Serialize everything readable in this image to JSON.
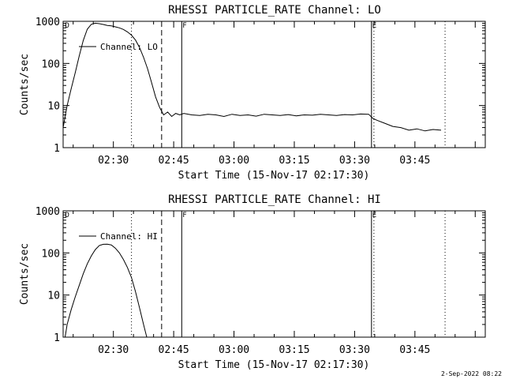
{
  "footer": {
    "timestamp": "2-Sep-2022 08:22"
  },
  "chart_data": [
    {
      "type": "line",
      "title": "RHESSI PARTICLE_RATE Channel: LO",
      "xlabel": "Start Time (15-Nov-17 02:17:30)",
      "ylabel": "Counts/sec",
      "legend_label": "Channel: LO",
      "legend_position": "top-left",
      "yscale": "log",
      "ylim": [
        1,
        1000
      ],
      "xlim_minutes": [
        0,
        105
      ],
      "xticks": [
        {
          "minute": 12.5,
          "label": "02:30"
        },
        {
          "minute": 27.5,
          "label": "02:45"
        },
        {
          "minute": 42.5,
          "label": "03:00"
        },
        {
          "minute": 57.5,
          "label": "03:15"
        },
        {
          "minute": 72.5,
          "label": "03:30"
        },
        {
          "minute": 87.5,
          "label": "03:45"
        }
      ],
      "yticks": [
        {
          "value": 1,
          "label": "1"
        },
        {
          "value": 10,
          "label": "10"
        },
        {
          "value": 100,
          "label": "100"
        },
        {
          "value": 1000,
          "label": "1000"
        }
      ],
      "markers": [
        {
          "minute": 0.3,
          "style": "none",
          "label": "D"
        },
        {
          "minute": 17.0,
          "style": "dotted",
          "label": ""
        },
        {
          "minute": 24.5,
          "style": "dashed",
          "label": ""
        },
        {
          "minute": 29.5,
          "style": "solid",
          "label": "F"
        },
        {
          "minute": 76.7,
          "style": "solid",
          "label": "E"
        },
        {
          "minute": 77.3,
          "style": "dotted",
          "label": ""
        },
        {
          "minute": 95.0,
          "style": "dotted",
          "label": ""
        }
      ],
      "series": [
        {
          "name": "Channel: LO",
          "x_minutes": [
            0,
            1,
            2,
            3,
            4,
            5,
            6,
            7,
            8,
            9,
            10,
            11,
            12,
            13,
            14,
            15,
            16,
            17,
            18,
            19,
            20,
            21,
            22,
            23,
            24,
            25,
            26,
            27,
            28,
            29,
            30,
            32,
            34,
            36,
            38,
            40,
            42,
            44,
            46,
            48,
            50,
            52,
            54,
            56,
            58,
            60,
            62,
            64,
            66,
            68,
            70,
            72,
            74,
            76,
            77,
            78,
            80,
            82,
            84,
            86,
            88,
            90,
            92,
            94
          ],
          "y": [
            3,
            10,
            25,
            60,
            150,
            350,
            650,
            850,
            900,
            880,
            840,
            800,
            780,
            740,
            700,
            640,
            560,
            470,
            360,
            240,
            140,
            75,
            35,
            16,
            9,
            6,
            7,
            5.5,
            6.5,
            6,
            6.5,
            6,
            5.8,
            6.2,
            6,
            5.5,
            6.2,
            5.8,
            6,
            5.6,
            6.2,
            6,
            5.8,
            6.1,
            5.7,
            6,
            5.9,
            6.2,
            6,
            5.8,
            6.1,
            6,
            6.3,
            6.2,
            5,
            4.5,
            3.8,
            3.2,
            3,
            2.6,
            2.8,
            2.5,
            2.7,
            2.6
          ]
        }
      ]
    },
    {
      "type": "line",
      "title": "RHESSI PARTICLE_RATE Channel: HI",
      "xlabel": "Start Time (15-Nov-17 02:17:30)",
      "ylabel": "Counts/sec",
      "legend_label": "Channel: HI",
      "legend_position": "top-left",
      "yscale": "log",
      "ylim": [
        1,
        1000
      ],
      "xlim_minutes": [
        0,
        105
      ],
      "xticks": [
        {
          "minute": 12.5,
          "label": "02:30"
        },
        {
          "minute": 27.5,
          "label": "02:45"
        },
        {
          "minute": 42.5,
          "label": "03:00"
        },
        {
          "minute": 57.5,
          "label": "03:15"
        },
        {
          "minute": 72.5,
          "label": "03:30"
        },
        {
          "minute": 87.5,
          "label": "03:45"
        }
      ],
      "yticks": [
        {
          "value": 1,
          "label": "1"
        },
        {
          "value": 10,
          "label": "10"
        },
        {
          "value": 100,
          "label": "100"
        },
        {
          "value": 1000,
          "label": "1000"
        }
      ],
      "markers": [
        {
          "minute": 0.3,
          "style": "none",
          "label": "D"
        },
        {
          "minute": 17.0,
          "style": "dotted",
          "label": ""
        },
        {
          "minute": 24.5,
          "style": "dashed",
          "label": ""
        },
        {
          "minute": 29.5,
          "style": "solid",
          "label": "F"
        },
        {
          "minute": 76.7,
          "style": "solid",
          "label": "E"
        },
        {
          "minute": 77.3,
          "style": "dotted",
          "label": ""
        },
        {
          "minute": 95.0,
          "style": "dotted",
          "label": ""
        }
      ],
      "series": [
        {
          "name": "Channel: HI",
          "x_minutes": [
            0.5,
            1,
            2,
            3,
            4,
            5,
            6,
            7,
            8,
            9,
            10,
            11,
            12,
            13,
            14,
            15,
            16,
            17,
            18,
            19,
            20,
            20.8
          ],
          "y": [
            1,
            2,
            4.5,
            9,
            17,
            32,
            55,
            85,
            120,
            150,
            160,
            162,
            155,
            130,
            100,
            70,
            45,
            26,
            12,
            5,
            2,
            1
          ]
        }
      ]
    }
  ]
}
